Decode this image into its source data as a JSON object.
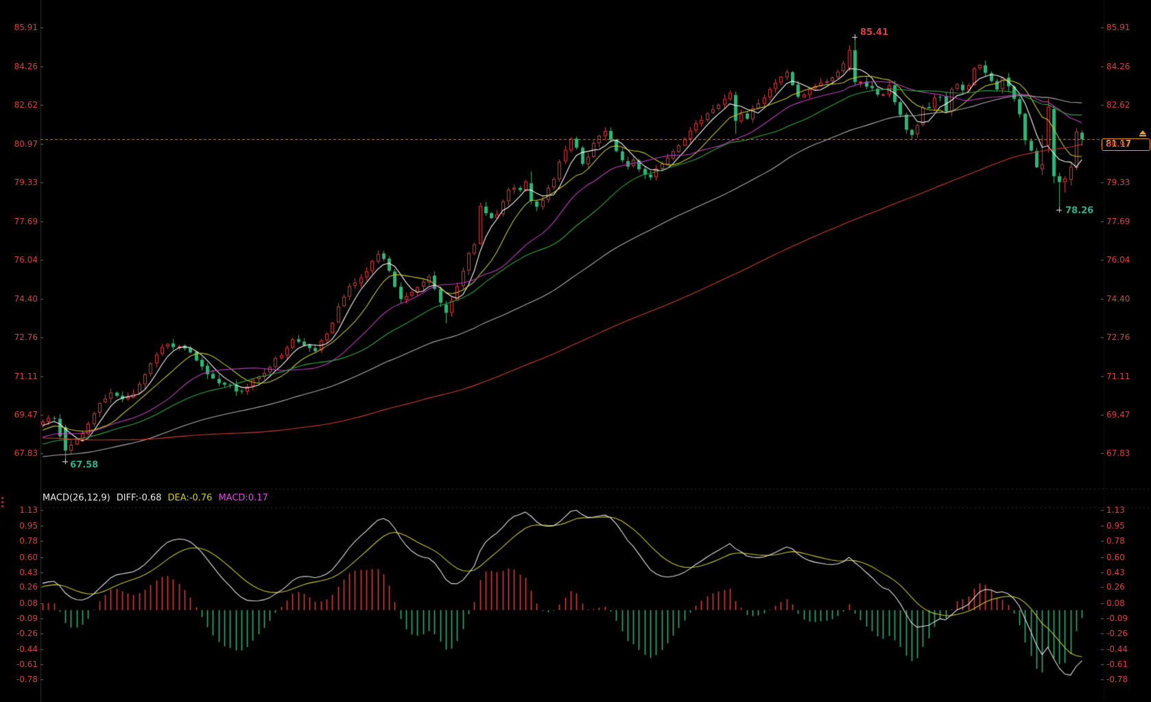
{
  "main_chart": {
    "price_ticks": [
      "85.91",
      "84.26",
      "82.62",
      "80.97",
      "79.33",
      "77.69",
      "76.04",
      "74.40",
      "72.76",
      "71.11",
      "69.47",
      "67.83"
    ],
    "annotations": {
      "high": "85.41",
      "low": "67.58",
      "swing_low": "78.26",
      "last_price": "81.17"
    }
  },
  "macd_panel": {
    "title": "MACD(26,12,9)",
    "diff": "DIFF:-0.68",
    "dea": "DEA:-0.76",
    "macd": "MACD:0.17",
    "ticks": [
      "1.13",
      "0.95",
      "0.78",
      "0.60",
      "0.43",
      "0.26",
      "0.08",
      "-0.09",
      "-0.26",
      "-0.44",
      "-0.61",
      "-0.78"
    ]
  },
  "colors": {
    "background": "#000000",
    "up": "#e23b3b",
    "down": "#2cb576",
    "axis_text": "#d84040",
    "teal_text": "#2fae8e",
    "ma_lines": [
      "#ffffff",
      "#cbcb2a",
      "#c63fc6",
      "#2faa46",
      "#b0b0b0",
      "#d23b35"
    ],
    "dif_line": "#e8e8e8",
    "dea_line": "#cbcb2a",
    "title_text": "#e8e8e8",
    "macd_value_text": "#e14ae1",
    "accent_orange": "#ef9a30",
    "price_line_orange": "#cf8a30",
    "grid": "#2d2d2d",
    "tick": "#6a6a6a"
  },
  "chart_data": {
    "type": "candlestick",
    "panels": [
      "price",
      "MACD"
    ],
    "candle_style": "red=up hollow, teal=down solid",
    "visible_candles": 184,
    "price_axis_range": [
      66.8,
      87.08
    ],
    "macd_axis_range": [
      -1.04,
      1.16
    ],
    "overlays": {
      "ma_periods": [
        5,
        10,
        20,
        30,
        60,
        120
      ]
    },
    "macd": {
      "fast": 12,
      "slow": 26,
      "signal": 9,
      "last_diff": -0.68,
      "last_dea": -0.76,
      "last_macd": 0.17,
      "display_max_dif": 1.13
    },
    "key_points": {
      "high": {
        "index": 143,
        "price": 85.41
      },
      "low": {
        "index": 4,
        "price": 67.58
      },
      "swing_low": {
        "index": 179,
        "price": 78.26
      },
      "last_close": 81.17
    },
    "pre_anchors": [
      [
        -130,
        69.6
      ],
      [
        -105,
        70.1
      ],
      [
        -80,
        69.2
      ],
      [
        -55,
        67.2
      ],
      [
        -35,
        67.0
      ],
      [
        -20,
        67.9
      ],
      [
        -8,
        68.6
      ],
      [
        -1,
        69.05
      ]
    ],
    "close_anchors": [
      [
        0,
        69.2
      ],
      [
        2,
        69.35
      ],
      [
        4,
        67.95
      ],
      [
        6,
        68.45
      ],
      [
        8,
        69.1
      ],
      [
        10,
        69.95
      ],
      [
        12,
        70.4
      ],
      [
        14,
        70.1
      ],
      [
        16,
        70.35
      ],
      [
        18,
        71.15
      ],
      [
        20,
        72.05
      ],
      [
        22,
        72.5
      ],
      [
        24,
        72.4
      ],
      [
        26,
        72.1
      ],
      [
        28,
        71.55
      ],
      [
        30,
        71.05
      ],
      [
        32,
        70.75
      ],
      [
        34,
        70.45
      ],
      [
        36,
        70.7
      ],
      [
        38,
        71.05
      ],
      [
        40,
        71.5
      ],
      [
        42,
        72.0
      ],
      [
        44,
        72.65
      ],
      [
        46,
        72.4
      ],
      [
        48,
        72.15
      ],
      [
        50,
        72.95
      ],
      [
        52,
        74.05
      ],
      [
        54,
        74.9
      ],
      [
        56,
        75.3
      ],
      [
        58,
        76.0
      ],
      [
        59,
        76.3
      ],
      [
        60,
        76.1
      ],
      [
        61,
        75.6
      ],
      [
        62,
        74.9
      ],
      [
        63,
        74.4
      ],
      [
        64,
        74.5
      ],
      [
        65,
        74.7
      ],
      [
        66,
        74.9
      ],
      [
        67,
        75.1
      ],
      [
        68,
        75.35
      ],
      [
        69,
        74.8
      ],
      [
        70,
        74.2
      ],
      [
        71,
        73.8
      ],
      [
        72,
        74.35
      ],
      [
        73,
        74.9
      ],
      [
        74,
        75.6
      ],
      [
        75,
        76.3
      ],
      [
        76,
        76.7
      ],
      [
        77,
        78.3
      ],
      [
        78,
        78.0
      ],
      [
        79,
        77.8
      ],
      [
        80,
        78.0
      ],
      [
        81,
        78.5
      ],
      [
        82,
        79.0
      ],
      [
        83,
        79.15
      ],
      [
        84,
        79.0
      ],
      [
        85,
        79.35
      ],
      [
        86,
        78.55
      ],
      [
        87,
        78.3
      ],
      [
        88,
        78.55
      ],
      [
        89,
        79.1
      ],
      [
        90,
        79.5
      ],
      [
        91,
        80.2
      ],
      [
        92,
        80.7
      ],
      [
        93,
        81.2
      ],
      [
        94,
        80.8
      ],
      [
        95,
        80.1
      ],
      [
        96,
        80.4
      ],
      [
        97,
        81.0
      ],
      [
        98,
        81.3
      ],
      [
        99,
        81.5
      ],
      [
        100,
        81.15
      ],
      [
        101,
        80.7
      ],
      [
        102,
        80.3
      ],
      [
        103,
        80.0
      ],
      [
        104,
        80.3
      ],
      [
        105,
        79.9
      ],
      [
        106,
        79.7
      ],
      [
        107,
        79.55
      ],
      [
        108,
        79.9
      ],
      [
        109,
        80.15
      ],
      [
        110,
        80.4
      ],
      [
        111,
        80.65
      ],
      [
        112,
        80.9
      ],
      [
        113,
        81.15
      ],
      [
        114,
        81.5
      ],
      [
        115,
        81.85
      ],
      [
        116,
        82.0
      ],
      [
        117,
        82.25
      ],
      [
        118,
        82.45
      ],
      [
        119,
        82.6
      ],
      [
        120,
        82.85
      ],
      [
        121,
        83.1
      ],
      [
        122,
        81.95
      ],
      [
        123,
        82.25
      ],
      [
        124,
        82.05
      ],
      [
        125,
        82.45
      ],
      [
        126,
        82.7
      ],
      [
        127,
        82.95
      ],
      [
        128,
        83.3
      ],
      [
        129,
        83.6
      ],
      [
        130,
        83.85
      ],
      [
        131,
        84.05
      ],
      [
        132,
        83.5
      ],
      [
        133,
        82.95
      ],
      [
        134,
        83.1
      ],
      [
        135,
        83.3
      ],
      [
        136,
        83.45
      ],
      [
        137,
        83.55
      ],
      [
        138,
        83.65
      ],
      [
        139,
        83.8
      ],
      [
        140,
        84.0
      ],
      [
        141,
        84.4
      ],
      [
        142,
        84.95
      ],
      [
        143,
        83.6
      ],
      [
        144,
        83.6
      ],
      [
        145,
        83.4
      ],
      [
        146,
        83.35
      ],
      [
        147,
        83.1
      ],
      [
        148,
        83.1
      ],
      [
        149,
        83.45
      ],
      [
        150,
        82.75
      ],
      [
        151,
        82.2
      ],
      [
        152,
        81.6
      ],
      [
        153,
        81.35
      ],
      [
        154,
        81.8
      ],
      [
        155,
        82.55
      ],
      [
        156,
        82.5
      ],
      [
        157,
        82.95
      ],
      [
        158,
        83.0
      ],
      [
        159,
        82.4
      ],
      [
        160,
        83.3
      ],
      [
        161,
        83.5
      ],
      [
        162,
        83.25
      ],
      [
        163,
        83.45
      ],
      [
        164,
        84.15
      ],
      [
        165,
        84.3
      ],
      [
        166,
        84.0
      ],
      [
        167,
        83.6
      ],
      [
        168,
        83.3
      ],
      [
        169,
        83.75
      ],
      [
        170,
        83.4
      ],
      [
        171,
        82.9
      ],
      [
        172,
        82.2
      ],
      [
        173,
        81.1
      ],
      [
        174,
        80.7
      ],
      [
        175,
        80.0
      ],
      [
        176,
        80.1
      ],
      [
        177,
        82.55
      ],
      [
        178,
        79.6
      ],
      [
        179,
        79.35
      ],
      [
        180,
        79.5
      ],
      [
        181,
        80.0
      ],
      [
        182,
        81.5
      ],
      [
        183,
        81.17
      ]
    ],
    "candle_overrides": [
      {
        "i": 4,
        "o": 68.95,
        "h": 69.05,
        "l": 67.58,
        "c": 67.95
      },
      {
        "i": 71,
        "o": 74.15,
        "h": 74.3,
        "l": 73.35,
        "c": 73.8
      },
      {
        "i": 86,
        "o": 79.3,
        "h": 79.8,
        "l": 78.4,
        "c": 78.55
      },
      {
        "i": 122,
        "o": 83.05,
        "h": 83.2,
        "l": 81.4,
        "c": 81.95
      },
      {
        "i": 142,
        "o": 84.2,
        "h": 85.15,
        "l": 84.05,
        "c": 84.95
      },
      {
        "i": 143,
        "o": 84.95,
        "h": 85.41,
        "l": 83.45,
        "c": 83.6
      },
      {
        "i": 176,
        "o": 79.9,
        "h": 81.35,
        "l": 79.65,
        "c": 80.1
      },
      {
        "i": 177,
        "o": 80.9,
        "h": 82.9,
        "l": 80.6,
        "c": 82.55
      },
      {
        "i": 178,
        "o": 82.45,
        "h": 82.6,
        "l": 79.3,
        "c": 79.6
      },
      {
        "i": 179,
        "o": 79.6,
        "h": 79.75,
        "l": 78.26,
        "c": 79.35
      },
      {
        "i": 180,
        "o": 79.35,
        "h": 79.6,
        "l": 78.9,
        "c": 79.5
      },
      {
        "i": 181,
        "o": 79.45,
        "h": 80.15,
        "l": 79.2,
        "c": 80.0
      },
      {
        "i": 182,
        "o": 79.95,
        "h": 81.65,
        "l": 79.85,
        "c": 81.5
      },
      {
        "i": 183,
        "o": 81.45,
        "h": 81.55,
        "l": 80.9,
        "c": 81.17
      }
    ],
    "noise_seed": 11,
    "noise_amp": 0.26,
    "wick_amp": 0.18
  }
}
